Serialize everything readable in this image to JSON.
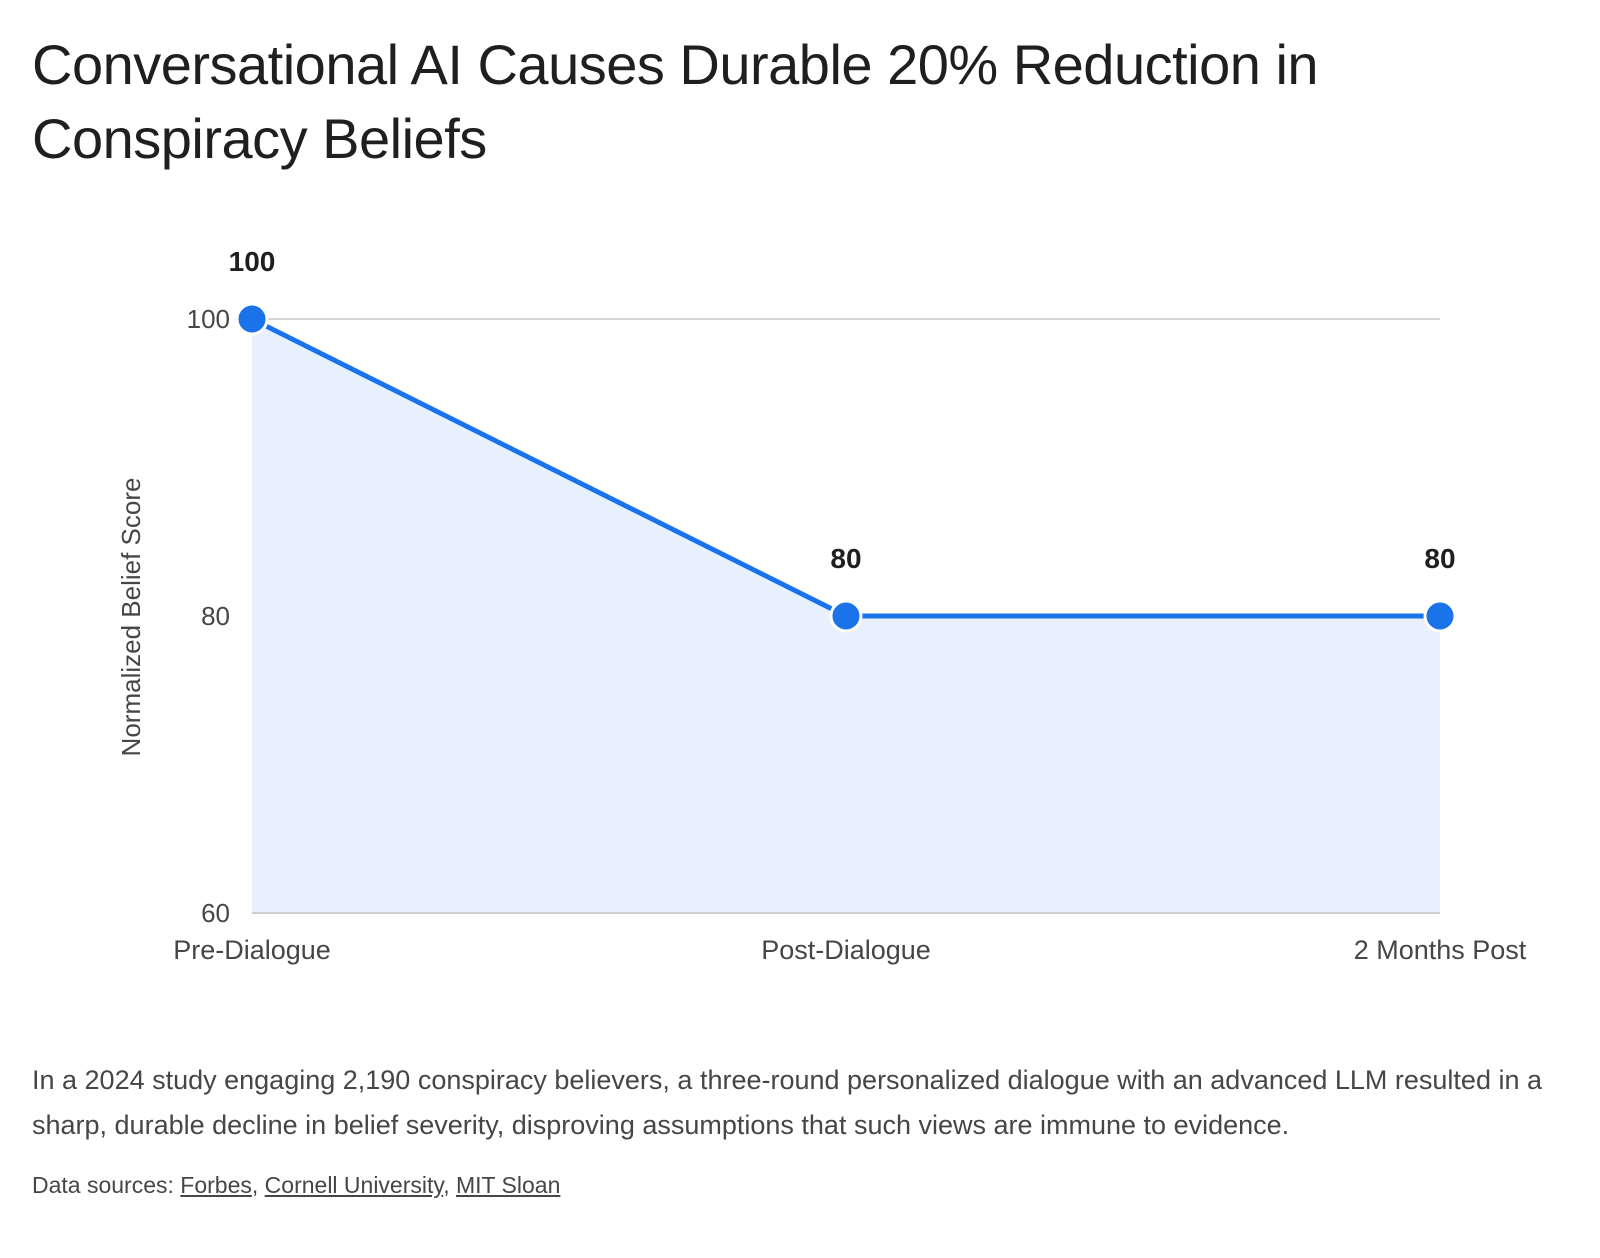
{
  "title": "Conversational AI Causes Durable 20% Reduction in Conspiracy Beliefs",
  "caption": "In a 2024 study engaging 2,190 conspiracy believers, a three-round personalized dialogue with an advanced LLM resulted in a sharp, durable decline in belief severity, disproving assumptions that such views are immune to evidence.",
  "sources": {
    "prefix": "Data sources: ",
    "separator": ", ",
    "links": [
      "Forbes",
      "Cornell University",
      "MIT Sloan"
    ]
  },
  "colors": {
    "line": "#1a73e8",
    "area_fill": "#e8f0fe",
    "grid": "#c4c7c5",
    "marker_stroke": "#ffffff"
  },
  "chart_data": {
    "type": "area",
    "categories": [
      "Pre-Dialogue",
      "Post-Dialogue",
      "2 Months Post"
    ],
    "values": [
      100,
      80,
      80
    ],
    "data_labels": [
      "100",
      "80",
      "80"
    ],
    "ylabel": "Normalized Belief Score",
    "xlabel": "",
    "ylim": [
      60,
      100
    ],
    "yticks": [
      60,
      80,
      100
    ],
    "grid": true,
    "legend": "none"
  }
}
